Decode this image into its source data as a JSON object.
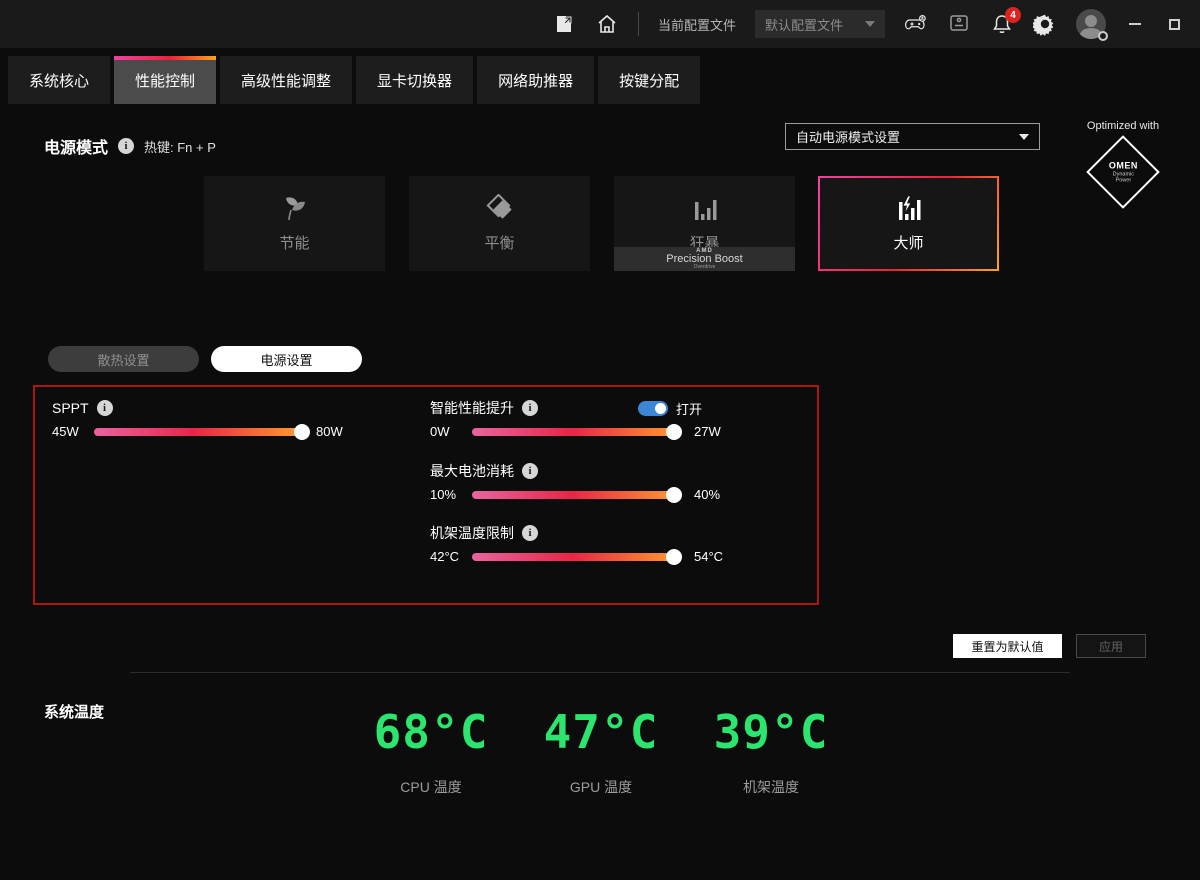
{
  "topbar": {
    "profile_label": "当前配置文件",
    "profile_value": "默认配置文件",
    "notification_count": "4"
  },
  "tabs": [
    {
      "label": "系统核心",
      "selected": false
    },
    {
      "label": "性能控制",
      "selected": true
    },
    {
      "label": "高级性能调整",
      "selected": false
    },
    {
      "label": "显卡切换器",
      "selected": false
    },
    {
      "label": "网络助推器",
      "selected": false
    },
    {
      "label": "按键分配",
      "selected": false
    }
  ],
  "power_mode": {
    "title": "电源模式",
    "hotkey": "热键: Fn + P",
    "auto_setting_dropdown": "自动电源模式设置",
    "optimized_with": "Optimized with",
    "omen_badge": {
      "name": "OMEN",
      "sub1": "Dynamic",
      "sub2": "Power"
    },
    "modes": [
      {
        "label": "节能",
        "selected": false
      },
      {
        "label": "平衡",
        "selected": false
      },
      {
        "label": "狂暴",
        "selected": false,
        "badge": {
          "brand": "AMD",
          "title": "Precision Boost",
          "sub": "Overdrive"
        }
      },
      {
        "label": "大师",
        "selected": true
      }
    ]
  },
  "settings_tabs": [
    {
      "label": "散热设置",
      "selected": false
    },
    {
      "label": "电源设置",
      "selected": true
    }
  ],
  "sliders": {
    "sppt": {
      "label": "SPPT",
      "min": "45W",
      "max": "80W",
      "percent": 100
    },
    "smart_boost": {
      "label": "智能性能提升",
      "toggle_label": "打开",
      "toggle_on": true,
      "min": "0W",
      "max": "27W",
      "percent": 97
    },
    "battery": {
      "label": "最大电池消耗",
      "min": "10%",
      "max": "40%",
      "percent": 97
    },
    "chassis": {
      "label": "机架温度限制",
      "min": "42°C",
      "max": "54°C",
      "percent": 97
    }
  },
  "actions": {
    "reset": "重置为默认值",
    "apply": "应用"
  },
  "system_temp": {
    "title": "系统温度",
    "items": [
      {
        "value": "68°C",
        "label": "CPU 温度"
      },
      {
        "value": "47°C",
        "label": "GPU 温度"
      },
      {
        "value": "39°C",
        "label": "机架温度"
      }
    ],
    "accent_color": "#2be56e"
  }
}
